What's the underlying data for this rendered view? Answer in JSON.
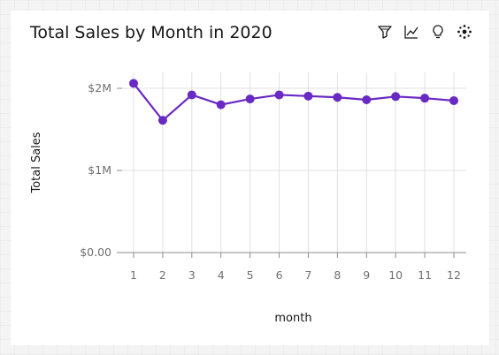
{
  "card": {
    "title": "Total Sales by Month in 2020",
    "toolbar": [
      {
        "name": "filter-icon"
      },
      {
        "name": "line-chart-icon"
      },
      {
        "name": "lightbulb-icon"
      },
      {
        "name": "settings-dots-icon"
      }
    ]
  },
  "colors": {
    "series": "#6929c4",
    "grid": "#e0e0e0",
    "axis": "#8d8d8d"
  },
  "chart_data": {
    "type": "line",
    "title": "Total Sales by Month in 2020",
    "xlabel": "month",
    "ylabel": "Total Sales",
    "x": [
      1,
      2,
      3,
      4,
      5,
      6,
      7,
      8,
      9,
      10,
      11,
      12
    ],
    "y_tick_values": [
      0,
      1000000,
      2000000
    ],
    "y_tick_labels": [
      "$0.00",
      "$1M",
      "$2M"
    ],
    "ylim": [
      0,
      2100000
    ],
    "grid": true,
    "legend": "none",
    "series": [
      {
        "values": [
          2060000,
          1610000,
          1920000,
          1800000,
          1870000,
          1920000,
          1905000,
          1890000,
          1860000,
          1900000,
          1880000,
          1850000
        ]
      }
    ]
  }
}
